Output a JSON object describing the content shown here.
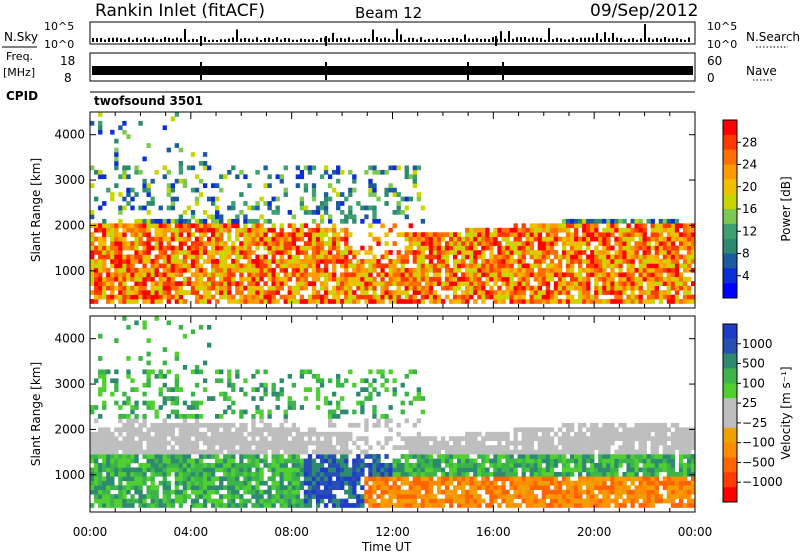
{
  "header": {
    "title": "Rankin Inlet (fitACF)",
    "beam": "Beam 12",
    "date": "09/Sep/2012"
  },
  "status_panels": {
    "nsky_label": "N.Sky",
    "nsearch_label": "N.Search",
    "freq_label_1": "Freq.",
    "freq_label_2": "[MHz]",
    "nave_label": "Nave",
    "cpid_label": "CPID",
    "cpid_value": "twofsound 3501",
    "nsky_ticks": [
      "10^5",
      "10^0"
    ],
    "nsearch_ticks": [
      "10^5",
      "10^0"
    ],
    "freq_ticks": [
      "18",
      "8"
    ],
    "nave_ticks": [
      "60",
      "0"
    ]
  },
  "chart_data": [
    {
      "type": "heatmap",
      "name": "power",
      "ylabel": "Slant Range [km]",
      "xlabel": "Time UT",
      "x_ticks": [
        "00:00",
        "04:00",
        "08:00",
        "12:00",
        "16:00",
        "20:00",
        "00:00"
      ],
      "x_range_hours": [
        0,
        24
      ],
      "y_ticks": [
        1000,
        2000,
        3000,
        4000
      ],
      "ylim": [
        180,
        4500
      ],
      "colorbar_label": "Power [dB]",
      "colorbar_ticks": [
        "28",
        "24",
        "20",
        "16",
        "12",
        "8",
        "4"
      ],
      "colorbar_colors": [
        "#ff0000",
        "#ff3a00",
        "#ff6e00",
        "#ff9a00",
        "#f0c000",
        "#c8d600",
        "#7cc850",
        "#3ea070",
        "#2e8a6e",
        "#1e5aa0",
        "#0a2ed8",
        "#0000ff"
      ]
    },
    {
      "type": "heatmap",
      "name": "velocity",
      "ylabel": "Slant Range [km]",
      "xlabel": "Time UT",
      "x_ticks": [
        "00:00",
        "04:00",
        "08:00",
        "12:00",
        "16:00",
        "20:00",
        "00:00"
      ],
      "x_range_hours": [
        0,
        24
      ],
      "y_ticks": [
        1000,
        2000,
        3000,
        4000
      ],
      "ylim": [
        180,
        4500
      ],
      "colorbar_label": "Velocity [m s⁻¹]",
      "colorbar_ticks": [
        "1000",
        "500",
        "100",
        "25",
        "−25",
        "−100",
        "−500",
        "−1000"
      ],
      "colorbar_colors": [
        "#1e3cc8",
        "#2850b4",
        "#2e8a6e",
        "#3cb44a",
        "#50d030",
        "#bebebe",
        "#bebebe",
        "#f0a000",
        "#ff8c00",
        "#ff6400",
        "#ff3c00",
        "#ff0000"
      ]
    }
  ],
  "xaxis_title": "Time UT"
}
